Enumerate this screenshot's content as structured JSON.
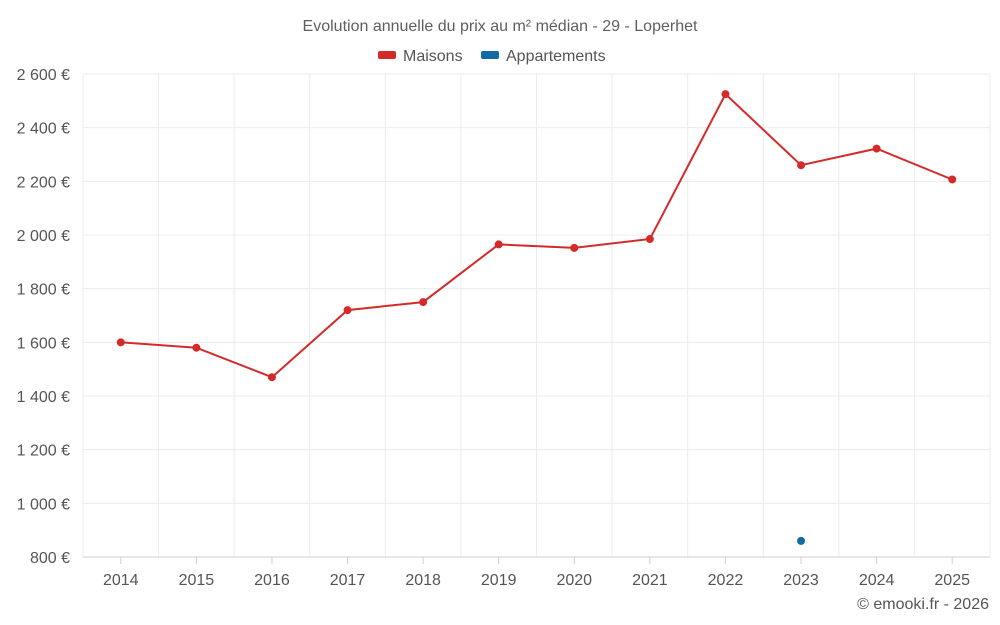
{
  "chart_data": {
    "type": "line",
    "title": "Evolution annuelle du prix au m² médian - 29 - Loperhet",
    "categories": [
      "2014",
      "2015",
      "2016",
      "2017",
      "2018",
      "2019",
      "2020",
      "2021",
      "2022",
      "2023",
      "2024",
      "2025"
    ],
    "series": [
      {
        "name": "Maisons",
        "color": "#d42a2a",
        "values": [
          1600,
          1580,
          1470,
          1720,
          1750,
          1965,
          1952,
          1985,
          2525,
          2260,
          2322,
          2207
        ]
      },
      {
        "name": "Appartements",
        "color": "#0f6aa6",
        "values": [
          null,
          null,
          null,
          null,
          null,
          null,
          null,
          null,
          null,
          860,
          null,
          null
        ]
      }
    ],
    "ylim": [
      800,
      2600
    ],
    "yticks": [
      800,
      1000,
      1200,
      1400,
      1600,
      1800,
      2000,
      2200,
      2400,
      2600
    ],
    "ytick_labels": [
      "800 €",
      "1 000 €",
      "1 200 €",
      "1 400 €",
      "1 600 €",
      "1 800 €",
      "2 000 €",
      "2 200 €",
      "2 400 €",
      "2 600 €"
    ],
    "grid": true,
    "legend": "top-center",
    "credit": "© emooki.fr - 2026"
  }
}
